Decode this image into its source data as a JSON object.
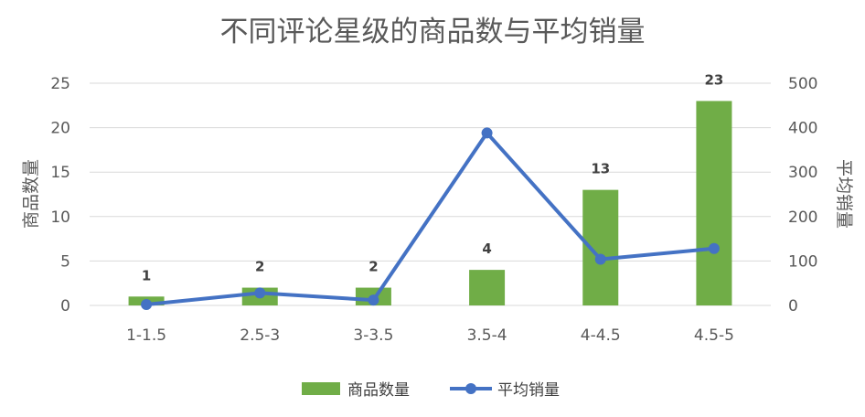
{
  "chart_data": {
    "type": "bar",
    "title": "不同评论星级的商品数与平均销量",
    "categories": [
      "1-1.5",
      "2.5-3",
      "3-3.5",
      "3.5-4",
      "4-4.5",
      "4.5-5"
    ],
    "series": [
      {
        "name": "商品数量",
        "type": "bar",
        "axis": "left",
        "color": "#70ad47",
        "values": [
          1,
          2,
          2,
          4,
          13,
          23
        ]
      },
      {
        "name": "平均销量",
        "type": "line",
        "axis": "right",
        "color": "#4472c4",
        "values": [
          2,
          28,
          12,
          388,
          104,
          128
        ]
      }
    ],
    "ylabel": "商品数量",
    "ylim": [
      0,
      25
    ],
    "yticks": [
      0,
      5,
      10,
      15,
      20,
      25
    ],
    "y2label": "平均销量",
    "y2lim": [
      0,
      500
    ],
    "y2ticks": [
      0,
      100,
      200,
      300,
      400,
      500
    ],
    "data_labels": [
      "1",
      "2",
      "2",
      "4",
      "13",
      "23"
    ],
    "grid": true,
    "legend": "bottom"
  }
}
